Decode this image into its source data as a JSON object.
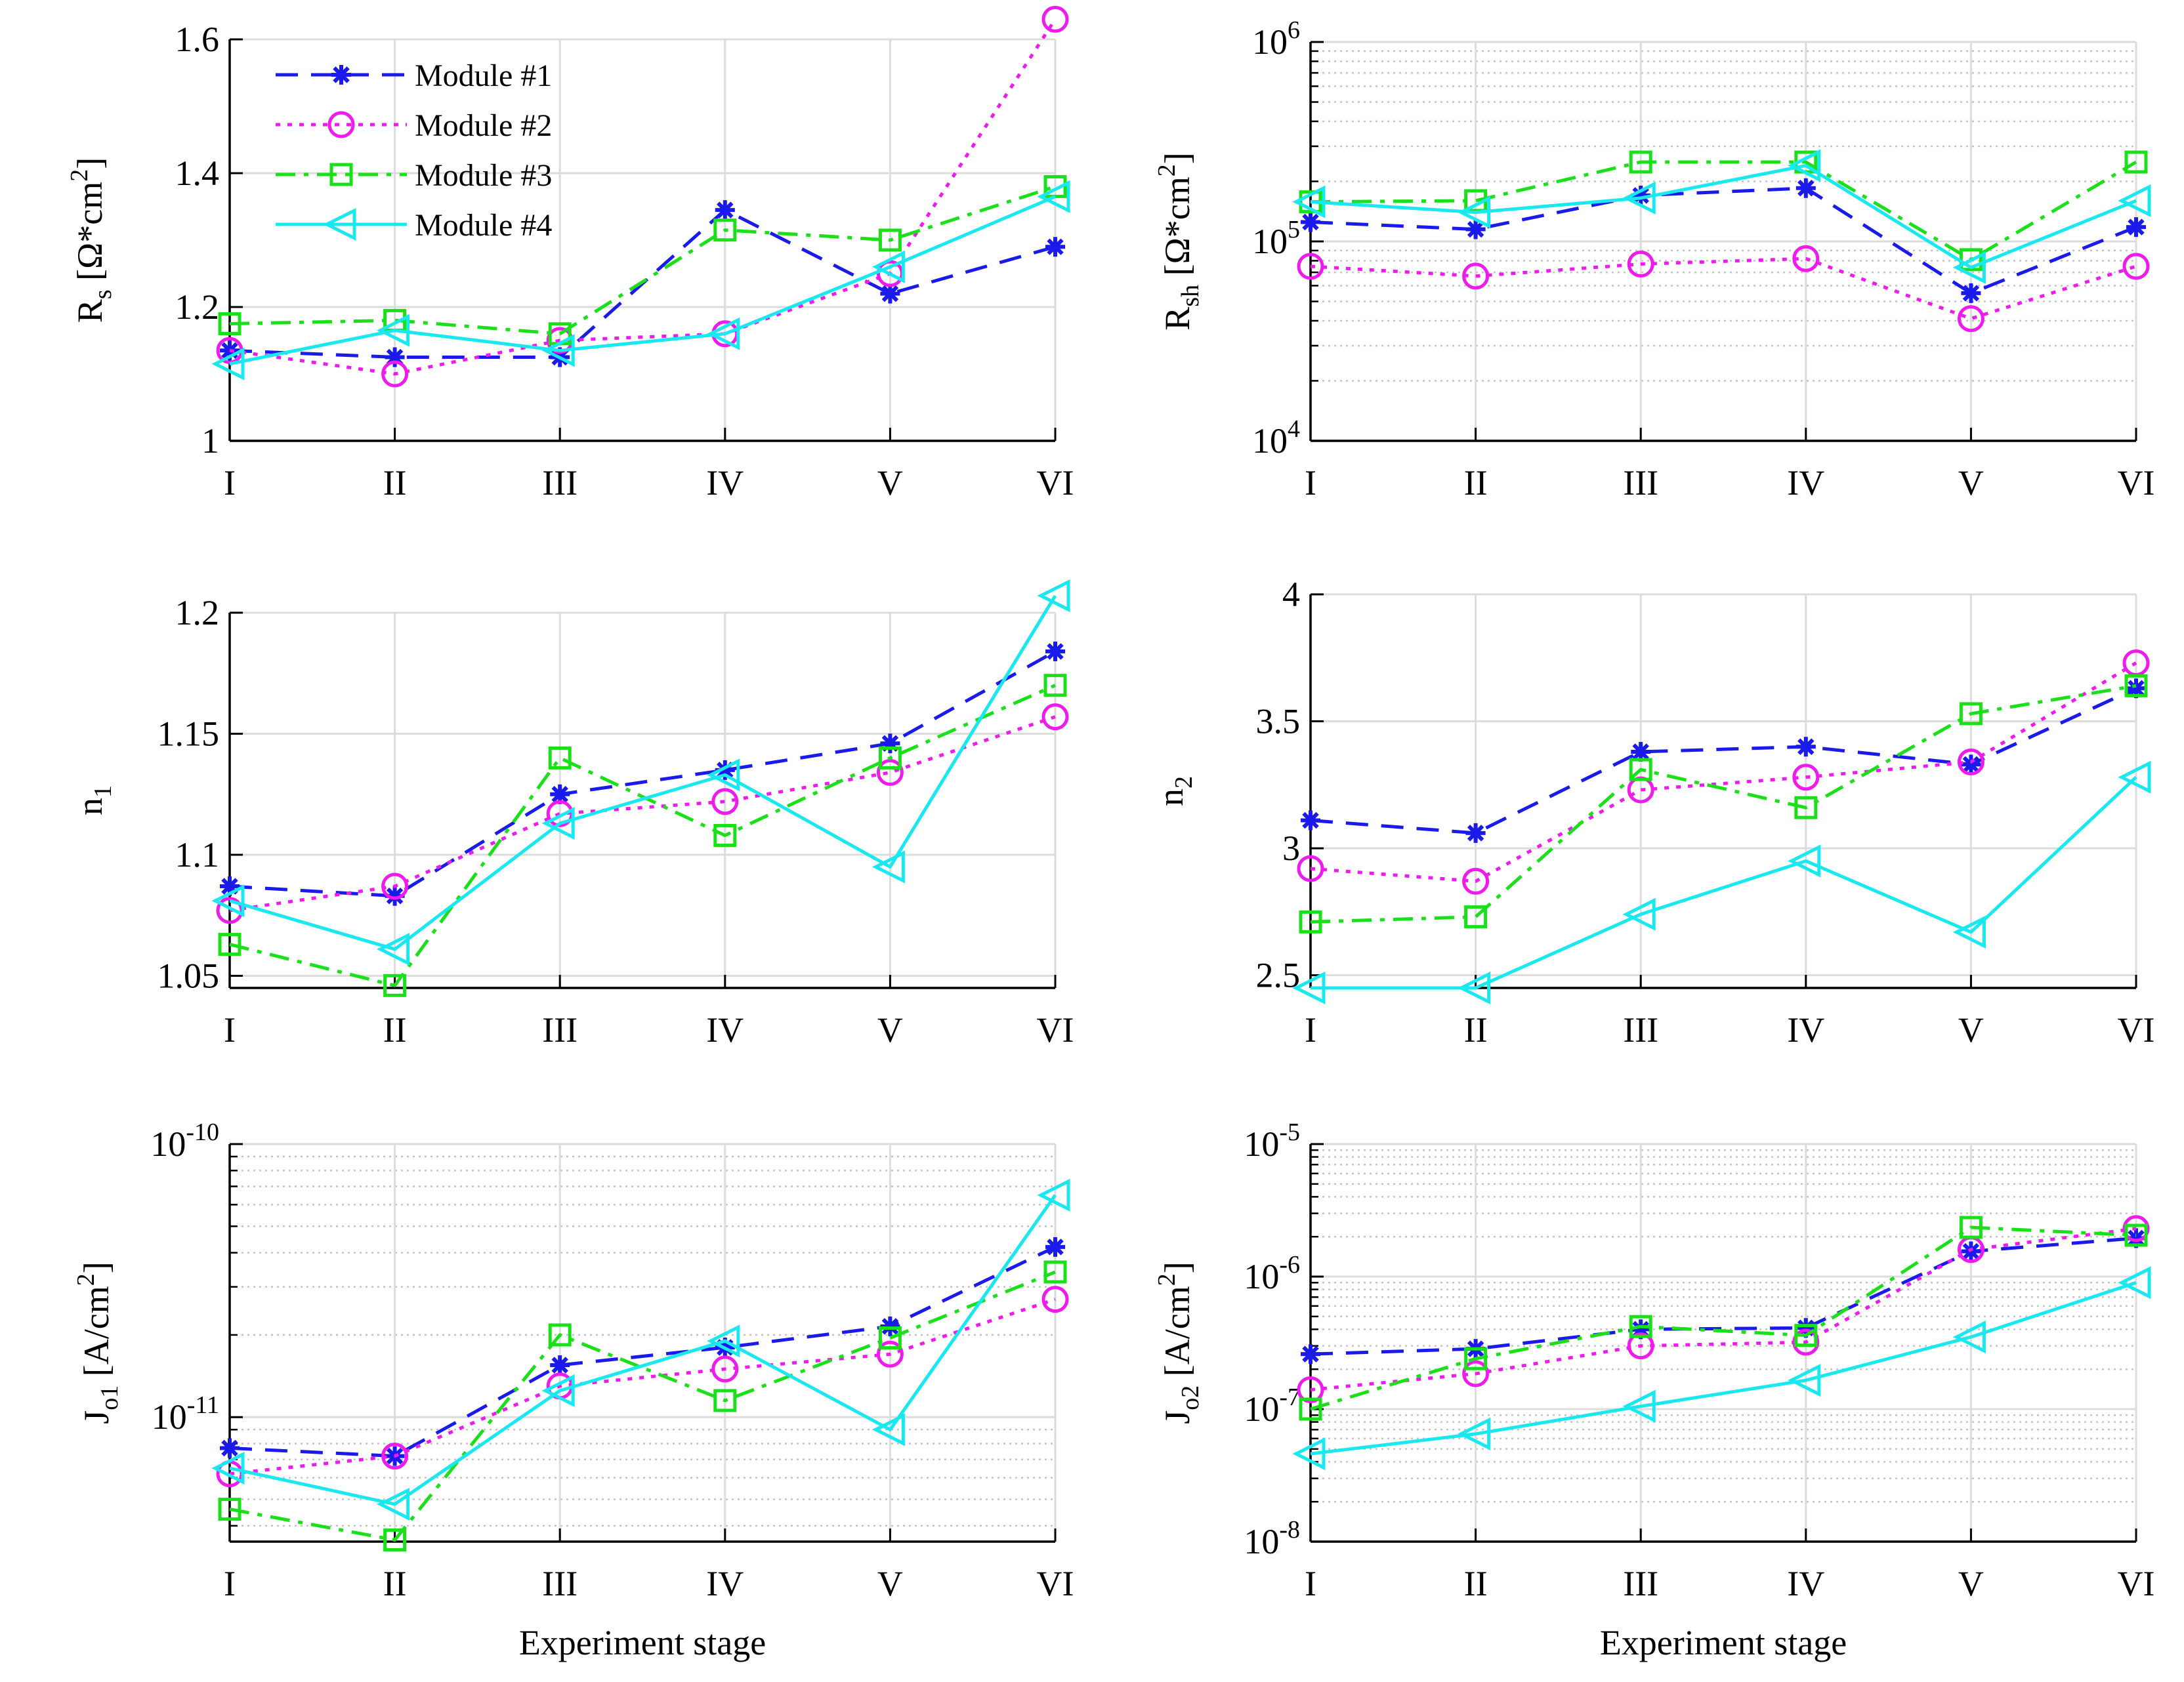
{
  "chart_data": {
    "type": "line",
    "layout": "3x2 grid of subplots",
    "categories": [
      "I",
      "II",
      "III",
      "IV",
      "V",
      "VI"
    ],
    "xlabel": "Experiment stage",
    "series_styles": [
      {
        "name": "Module #1",
        "color": "#1a1aeb",
        "dash": "dashed",
        "marker": "asterisk"
      },
      {
        "name": "Module #2",
        "color": "#ee1aee",
        "dash": "dotted",
        "marker": "circle"
      },
      {
        "name": "Module #3",
        "color": "#1ae01a",
        "dash": "dash-dot",
        "marker": "square"
      },
      {
        "name": "Module #4",
        "color": "#1ae8f0",
        "dash": "solid",
        "marker": "triangle-left"
      }
    ],
    "legend": {
      "position": "top-left of first subplot",
      "entries": [
        "Module #1",
        "Module #2",
        "Module #3",
        "Module #4"
      ]
    },
    "subplots": [
      {
        "id": "rs",
        "ylabel_main": "R",
        "ylabel_sub": "s",
        "ylabel_rest": "[Ω*cm",
        "ylabel_sup": "2",
        "ylabel_end": "]",
        "yscale": "linear",
        "ylim": [
          1.0,
          1.6
        ],
        "yticks": [
          {
            "v": 1.0,
            "t": "1"
          },
          {
            "v": 1.2,
            "t": "1.2"
          },
          {
            "v": 1.4,
            "t": "1.4"
          },
          {
            "v": 1.6,
            "t": "1.6"
          }
        ],
        "show_xlabel": false,
        "series": [
          {
            "name": "Module #1",
            "values": [
              1.135,
              1.125,
              1.125,
              1.345,
              1.22,
              1.29
            ]
          },
          {
            "name": "Module #2",
            "values": [
              1.135,
              1.1,
              1.15,
              1.16,
              1.25,
              1.63
            ]
          },
          {
            "name": "Module #3",
            "values": [
              1.175,
              1.18,
              1.16,
              1.315,
              1.3,
              1.38
            ]
          },
          {
            "name": "Module #4",
            "values": [
              1.115,
              1.165,
              1.135,
              1.16,
              1.26,
              1.365
            ]
          }
        ]
      },
      {
        "id": "rsh",
        "ylabel_main": "R",
        "ylabel_sub": "sh",
        "ylabel_rest": "[Ω*cm",
        "ylabel_sup": "2",
        "ylabel_end": "]",
        "yscale": "log",
        "ylim": [
          10000,
          1000000
        ],
        "yticks": [
          {
            "v": 10000,
            "base": "10",
            "exp": "4"
          },
          {
            "v": 100000,
            "base": "10",
            "exp": "5"
          },
          {
            "v": 1000000,
            "base": "10",
            "exp": "6"
          }
        ],
        "show_xlabel": false,
        "series": [
          {
            "name": "Module #1",
            "values": [
              125000,
              115000,
              170000,
              185000,
              55000,
              118000
            ]
          },
          {
            "name": "Module #2",
            "values": [
              75000,
              67000,
              77000,
              82000,
              41000,
              75000
            ]
          },
          {
            "name": "Module #3",
            "values": [
              158000,
              160000,
              250000,
              250000,
              81000,
              250000
            ]
          },
          {
            "name": "Module #4",
            "values": [
              158000,
              140000,
              165000,
              240000,
              74000,
              160000
            ]
          }
        ]
      },
      {
        "id": "n1",
        "ylabel_main": "n",
        "ylabel_sub": "1",
        "ylabel_rest": "",
        "ylabel_sup": "",
        "ylabel_end": "",
        "yscale": "linear",
        "ylim": [
          1.045,
          1.2
        ],
        "yticks": [
          {
            "v": 1.05,
            "t": "1.05"
          },
          {
            "v": 1.1,
            "t": "1.1"
          },
          {
            "v": 1.15,
            "t": "1.15"
          },
          {
            "v": 1.2,
            "t": "1.2"
          }
        ],
        "show_xlabel": false,
        "series": [
          {
            "name": "Module #1",
            "values": [
              1.087,
              1.083,
              1.125,
              1.135,
              1.146,
              1.184
            ]
          },
          {
            "name": "Module #2",
            "values": [
              1.077,
              1.087,
              1.117,
              1.122,
              1.134,
              1.157
            ]
          },
          {
            "name": "Module #3",
            "values": [
              1.063,
              1.046,
              1.14,
              1.108,
              1.14,
              1.17
            ]
          },
          {
            "name": "Module #4",
            "values": [
              1.081,
              1.061,
              1.113,
              1.133,
              1.095,
              1.207
            ]
          }
        ]
      },
      {
        "id": "n2",
        "ylabel_main": "n",
        "ylabel_sub": "2",
        "ylabel_rest": "",
        "ylabel_sup": "",
        "ylabel_end": "",
        "yscale": "linear",
        "ylim": [
          2.45,
          4.0
        ],
        "yticks": [
          {
            "v": 2.5,
            "t": "2.5"
          },
          {
            "v": 3.0,
            "t": "3"
          },
          {
            "v": 3.5,
            "t": "3.5"
          },
          {
            "v": 4.0,
            "t": "4"
          }
        ],
        "show_xlabel": false,
        "series": [
          {
            "name": "Module #1",
            "values": [
              3.11,
              3.06,
              3.38,
              3.4,
              3.33,
              3.63
            ]
          },
          {
            "name": "Module #2",
            "values": [
              2.92,
              2.87,
              3.23,
              3.28,
              3.34,
              3.73
            ]
          },
          {
            "name": "Module #3",
            "values": [
              2.71,
              2.73,
              3.31,
              3.16,
              3.53,
              3.64
            ]
          },
          {
            "name": "Module #4",
            "values": [
              2.45,
              2.45,
              2.74,
              2.95,
              2.67,
              3.28
            ]
          }
        ]
      },
      {
        "id": "jo1",
        "ylabel_main": "J",
        "ylabel_sub": "o1",
        "ylabel_rest": "[A/cm",
        "ylabel_sup": "2",
        "ylabel_end": "]",
        "yscale": "log",
        "ylim": [
          3.5e-12,
          1e-10
        ],
        "yticks": [
          {
            "v": 1e-11,
            "base": "10",
            "exp": "-11"
          },
          {
            "v": 1e-10,
            "base": "10",
            "exp": "-10"
          }
        ],
        "show_xlabel": true,
        "series": [
          {
            "name": "Module #1",
            "values": [
              7.7e-12,
              7.2e-12,
              1.55e-11,
              1.8e-11,
              2.15e-11,
              4.2e-11
            ]
          },
          {
            "name": "Module #2",
            "values": [
              6.2e-12,
              7.2e-12,
              1.3e-11,
              1.5e-11,
              1.7e-11,
              2.7e-11
            ]
          },
          {
            "name": "Module #3",
            "values": [
              4.6e-12,
              3.55e-12,
              2e-11,
              1.15e-11,
              1.95e-11,
              3.4e-11
            ]
          },
          {
            "name": "Module #4",
            "values": [
              6.5e-12,
              4.8e-12,
              1.25e-11,
              1.9e-11,
              9e-12,
              6.5e-11
            ]
          }
        ]
      },
      {
        "id": "jo2",
        "ylabel_main": "J",
        "ylabel_sub": "o2",
        "ylabel_rest": "[A/cm",
        "ylabel_sup": "2",
        "ylabel_end": "]",
        "yscale": "log",
        "ylim": [
          1e-08,
          1e-05
        ],
        "yticks": [
          {
            "v": 1e-08,
            "base": "10",
            "exp": "-8"
          },
          {
            "v": 1e-07,
            "base": "10",
            "exp": "-7"
          },
          {
            "v": 1e-06,
            "base": "10",
            "exp": "-6"
          },
          {
            "v": 1e-05,
            "base": "10",
            "exp": "-5"
          }
        ],
        "show_xlabel": true,
        "series": [
          {
            "name": "Module #1",
            "values": [
              2.6e-07,
              2.85e-07,
              4e-07,
              4.1e-07,
              1.55e-06,
              1.95e-06
            ]
          },
          {
            "name": "Module #2",
            "values": [
              1.4e-07,
              1.85e-07,
              3e-07,
              3.2e-07,
              1.6e-06,
              2.3e-06
            ]
          },
          {
            "name": "Module #3",
            "values": [
              1e-07,
              2.4e-07,
              4.2e-07,
              3.6e-07,
              2.35e-06,
              2.05e-06
            ]
          },
          {
            "name": "Module #4",
            "values": [
              4.6e-08,
              6.5e-08,
              1.05e-07,
              1.65e-07,
              3.5e-07,
              9e-07
            ]
          }
        ]
      }
    ]
  }
}
